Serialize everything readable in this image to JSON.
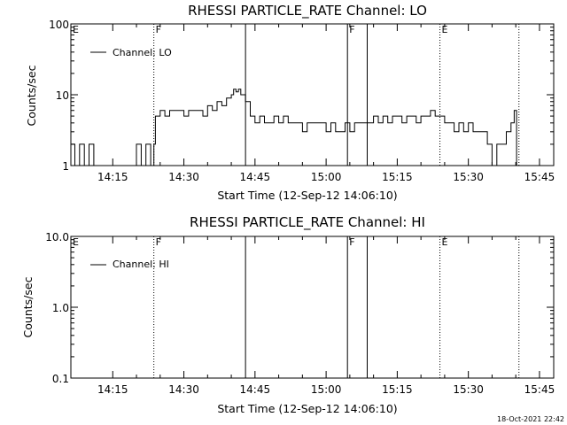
{
  "stamp": "18-Oct-2021 22:42",
  "chart_data": [
    {
      "type": "line",
      "title": "RHESSI PARTICLE_RATE Channel: LO",
      "xlabel": "Start Time (12-Sep-12 14:06:10)",
      "ylabel": "Counts/sec",
      "yscale": "log",
      "ylim": [
        1,
        100
      ],
      "xlim": [
        "14:06:10",
        "15:48:00"
      ],
      "x_tick_labels": [
        "14:15",
        "14:30",
        "14:45",
        "15:00",
        "15:15",
        "15:30",
        "15:45"
      ],
      "y_tick_labels": [
        "1",
        "10",
        "100"
      ],
      "legend": {
        "label": "Channel: LO",
        "position": "top-left"
      },
      "marker_lines": [
        {
          "time": "14:23:40",
          "style": "dotted",
          "label": "F"
        },
        {
          "time": "14:43:00",
          "style": "solid",
          "label": ""
        },
        {
          "time": "15:04:30",
          "style": "solid",
          "label": "F"
        },
        {
          "time": "15:08:40",
          "style": "solid",
          "label": ""
        },
        {
          "time": "15:24:00",
          "style": "dotted",
          "label": "E"
        },
        {
          "time": "15:40:40",
          "style": "dotted",
          "label": ""
        }
      ],
      "corner_marker": "E",
      "series": [
        {
          "x": [
            "14:06:10",
            "14:07:00",
            "14:08:00",
            "14:09:00",
            "14:10:00",
            "14:11:00",
            "14:12:00",
            "14:13:00",
            "14:14:00",
            "14:15:00",
            "14:16:00",
            "14:17:00",
            "14:18:00",
            "14:19:00",
            "14:20:00",
            "14:21:00",
            "14:22:00",
            "14:23:00",
            "14:23:40",
            "14:24:00",
            "14:25:00",
            "14:26:00",
            "14:27:00",
            "14:28:00",
            "14:29:00",
            "14:30:00",
            "14:31:00",
            "14:32:00",
            "14:33:00",
            "14:34:00",
            "14:35:00",
            "14:36:00",
            "14:37:00",
            "14:38:00",
            "14:39:00",
            "14:40:00",
            "14:40:30",
            "14:41:00",
            "14:41:30",
            "14:42:00",
            "14:43:00",
            "14:44:00",
            "14:45:00",
            "14:46:00",
            "14:47:00",
            "14:48:00",
            "14:49:00",
            "14:50:00",
            "14:51:00",
            "14:52:00",
            "14:53:00",
            "14:54:00",
            "14:55:00",
            "14:56:00",
            "14:57:00",
            "14:58:00",
            "14:59:00",
            "15:00:00",
            "15:01:00",
            "15:02:00",
            "15:03:00",
            "15:04:00",
            "15:05:00",
            "15:06:00",
            "15:07:00",
            "15:08:00",
            "15:09:00",
            "15:10:00",
            "15:11:00",
            "15:12:00",
            "15:13:00",
            "15:14:00",
            "15:15:00",
            "15:16:00",
            "15:17:00",
            "15:18:00",
            "15:19:00",
            "15:20:00",
            "15:21:00",
            "15:22:00",
            "15:23:00",
            "15:24:00",
            "15:25:00",
            "15:26:00",
            "15:27:00",
            "15:28:00",
            "15:29:00",
            "15:30:00",
            "15:31:00",
            "15:32:00",
            "15:33:00",
            "15:34:00",
            "15:35:00",
            "15:36:00",
            "15:37:00",
            "15:38:00",
            "15:39:00",
            "15:39:40",
            "15:40:10"
          ],
          "values": [
            2,
            1,
            2,
            1,
            2,
            1,
            1,
            1,
            1,
            1,
            1,
            1,
            1,
            1,
            2,
            1,
            2,
            1,
            2,
            5,
            6,
            5,
            6,
            6,
            6,
            5,
            6,
            6,
            6,
            5,
            7,
            6,
            8,
            7,
            9,
            10,
            12,
            11,
            12,
            10,
            8,
            5,
            4,
            5,
            4,
            4,
            5,
            4,
            5,
            4,
            4,
            4,
            3,
            4,
            4,
            4,
            4,
            3,
            4,
            3,
            3,
            4,
            3,
            4,
            4,
            4,
            4,
            5,
            4,
            5,
            4,
            5,
            5,
            4,
            5,
            5,
            4,
            5,
            5,
            6,
            5,
            5,
            4,
            4,
            3,
            4,
            3,
            4,
            3,
            3,
            3,
            2,
            1,
            2,
            2,
            3,
            4,
            6,
            1
          ]
        }
      ]
    },
    {
      "type": "line",
      "title": "RHESSI PARTICLE_RATE Channel: HI",
      "xlabel": "Start Time (12-Sep-12 14:06:10)",
      "ylabel": "Counts/sec",
      "yscale": "log",
      "ylim": [
        0.1,
        10
      ],
      "xlim": [
        "14:06:10",
        "15:48:00"
      ],
      "x_tick_labels": [
        "14:15",
        "14:30",
        "14:45",
        "15:00",
        "15:15",
        "15:30",
        "15:45"
      ],
      "y_tick_labels": [
        "0.1",
        "1.0",
        "10.0"
      ],
      "legend": {
        "label": "Channel: HI",
        "position": "top-left"
      },
      "marker_lines": [
        {
          "time": "14:23:40",
          "style": "dotted",
          "label": "F"
        },
        {
          "time": "14:43:00",
          "style": "solid",
          "label": ""
        },
        {
          "time": "15:04:30",
          "style": "solid",
          "label": "F"
        },
        {
          "time": "15:08:40",
          "style": "solid",
          "label": ""
        },
        {
          "time": "15:24:00",
          "style": "dotted",
          "label": "E"
        },
        {
          "time": "15:40:40",
          "style": "dotted",
          "label": ""
        }
      ],
      "corner_marker": "E",
      "series": [
        {
          "x": [],
          "values": []
        }
      ]
    }
  ]
}
